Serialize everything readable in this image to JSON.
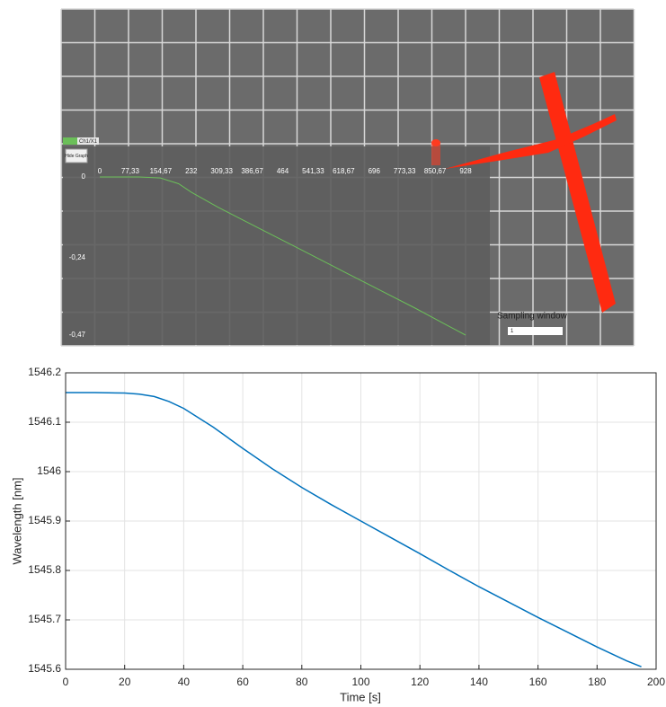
{
  "ui": {
    "tab": "Ch1/X1",
    "button": "Hide Graph",
    "sampling_label": "Sampling window",
    "sampling_value": "1"
  },
  "chart_data": [
    {
      "type": "line",
      "color": "#6bbf59",
      "x": [
        0,
        100,
        154,
        200,
        232,
        300,
        400,
        500,
        600,
        700,
        800,
        880,
        928
      ],
      "values": [
        0,
        0,
        -0.003,
        -0.02,
        -0.045,
        -0.09,
        -0.15,
        -0.21,
        -0.27,
        -0.33,
        -0.39,
        -0.44,
        -0.47
      ],
      "xlim": [
        0,
        928
      ],
      "xticks": [
        0,
        {
          "value": 77.33,
          "label": "77,33"
        },
        {
          "value": 154.67,
          "label": "154,67"
        },
        232,
        {
          "value": 309.33,
          "label": "309,33"
        },
        {
          "value": 386.67,
          "label": "386,67"
        },
        464,
        {
          "value": 541.33,
          "label": "541,33"
        },
        {
          "value": 618.67,
          "label": "618,67"
        },
        696,
        {
          "value": 773.33,
          "label": "773,33"
        },
        {
          "value": 850.67,
          "label": "850,67"
        },
        928
      ],
      "ylim": [
        -0.47,
        0
      ],
      "yticks": [
        0,
        {
          "value": -0.24,
          "label": "-0,24"
        },
        {
          "value": -0.47,
          "label": "-0,47"
        }
      ],
      "grid": false
    },
    {
      "type": "line",
      "color": "#0072bd",
      "x_label": "Time [s]",
      "y_label": "Wavelength [nm]",
      "x": [
        0,
        10,
        20,
        25,
        30,
        35,
        40,
        50,
        60,
        70,
        80,
        90,
        100,
        110,
        120,
        130,
        140,
        150,
        160,
        170,
        180,
        190,
        195
      ],
      "values": [
        1546.16,
        1546.16,
        1546.159,
        1546.157,
        1546.152,
        1546.142,
        1546.128,
        1546.09,
        1546.047,
        1546.006,
        1545.968,
        1545.933,
        1545.9,
        1545.867,
        1545.834,
        1545.8,
        1545.767,
        1545.736,
        1545.705,
        1545.675,
        1545.645,
        1545.617,
        1545.605
      ],
      "xlim": [
        0,
        200
      ],
      "xticks": [
        0,
        20,
        40,
        60,
        80,
        100,
        120,
        140,
        160,
        180,
        200
      ],
      "ylim": [
        1545.6,
        1546.2
      ],
      "yticks": [
        1545.6,
        1545.7,
        1545.8,
        1545.9,
        1546,
        1546.1,
        1546.2
      ],
      "grid": true
    }
  ]
}
